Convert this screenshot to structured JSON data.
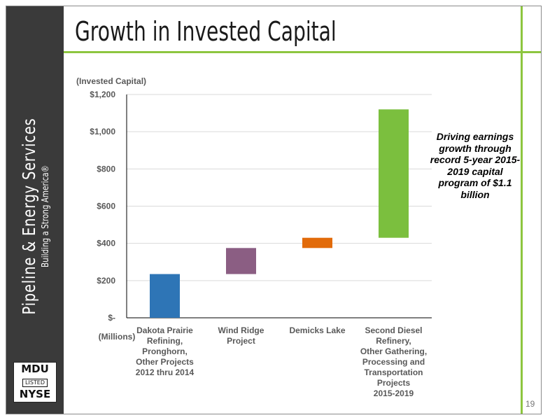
{
  "slide": {
    "title": "Growth in Invested Capital",
    "page_number": "19",
    "callout": "Driving earnings growth through record 5-year 2015-2019 capital program of $1.1 billion"
  },
  "sidebar": {
    "title": "Pipeline & Energy Services",
    "tagline": "Building a Strong America®",
    "logo": {
      "top": "MDU",
      "middle": "LISTED",
      "bottom": "NYSE"
    },
    "background_color": "#3a3a3a",
    "accent_color": "#8dc63f"
  },
  "chart_data": {
    "type": "bar",
    "subtype": "waterfall",
    "ylabel": "(Invested Capital)",
    "xlabel": "(Millions)",
    "ylim": [
      0,
      1200
    ],
    "yticks": [
      0,
      200,
      400,
      600,
      800,
      1000,
      1200
    ],
    "ytick_labels": [
      "$-",
      "$200",
      "$400",
      "$600",
      "$800",
      "$1,000",
      "$1,200"
    ],
    "grid": true,
    "categories": [
      [
        "Dakota Prairie",
        "Refining,",
        "Pronghorn,",
        "Other Projects",
        "2012 thru 2014"
      ],
      [
        "Wind Ridge",
        "Project"
      ],
      [
        "Demicks Lake"
      ],
      [
        "Second Diesel",
        "Refinery,",
        "Other Gathering,",
        "Processing and",
        "Transportation",
        "Projects",
        "2015-2019"
      ]
    ],
    "bars": [
      {
        "start": 0,
        "end": 235,
        "color": "#2e75b6"
      },
      {
        "start": 235,
        "end": 375,
        "color": "#8b5e83"
      },
      {
        "start": 375,
        "end": 430,
        "color": "#e26b0a"
      },
      {
        "start": 430,
        "end": 1120,
        "color": "#7bbf3e"
      }
    ]
  }
}
